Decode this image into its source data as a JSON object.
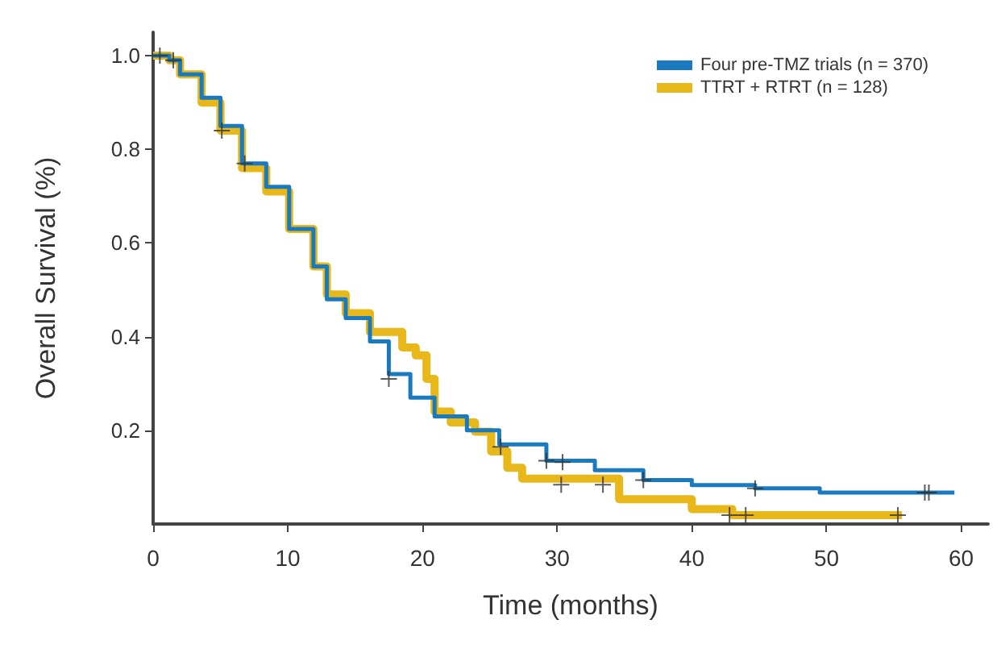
{
  "chart_data": {
    "type": "step",
    "xlabel": "Time (months)",
    "ylabel": "Overall Survival (%)",
    "xlim": [
      0,
      62
    ],
    "ylim": [
      0,
      1.05
    ],
    "xticks": [
      0,
      10,
      20,
      30,
      40,
      50,
      60
    ],
    "yticks": [
      0.2,
      0.4,
      0.6,
      0.8,
      {
        "value": 1,
        "label": "1.0"
      }
    ],
    "grid": false,
    "legend": "top right",
    "line_style": "solid",
    "series": [
      {
        "name": "Four pre-TMZ trials (n = 370)",
        "color": "#1a7abf",
        "x": [
          0,
          1.2,
          2.0,
          3.6,
          5.0,
          6.6,
          8.4,
          10.1,
          11.9,
          12.9,
          14.3,
          16.1,
          17.5,
          19.1,
          20.9,
          23.3,
          25.7,
          29.2,
          32.8,
          36.4,
          40,
          44.7,
          49.5,
          59.5
        ],
        "values": [
          1,
          0.99,
          0.96,
          0.91,
          0.85,
          0.77,
          0.72,
          0.63,
          0.55,
          0.48,
          0.44,
          0.39,
          0.32,
          0.27,
          0.23,
          0.2,
          0.17,
          0.135,
          0.115,
          0.094,
          0.083,
          0.076,
          0.067,
          0.067
        ]
      },
      {
        "name": "TTRT + RTRT (n = 128)",
        "color": "#e8b71a",
        "x": [
          0,
          1.2,
          2.0,
          3.6,
          5.0,
          6.6,
          8.4,
          10.1,
          11.9,
          12.9,
          14.3,
          16.1,
          18.5,
          19.5,
          20.3,
          20.9,
          22.1,
          23.9,
          25.1,
          26.3,
          27.4,
          34.6,
          40,
          43,
          55.6
        ],
        "values": [
          1,
          0.99,
          0.96,
          0.9,
          0.84,
          0.76,
          0.71,
          0.63,
          0.55,
          0.49,
          0.45,
          0.41,
          0.377,
          0.36,
          0.31,
          0.24,
          0.217,
          0.197,
          0.155,
          0.12,
          0.097,
          0.053,
          0.032,
          0.019,
          0.019
        ]
      },
      {
        "type": "scatter",
        "marker": "cross",
        "color": "#333333",
        "x": [
          0.5,
          1.5,
          5.1,
          6.8,
          17.5,
          25.8,
          29.2,
          30.4,
          36.4,
          44.7,
          57.3,
          57.6
        ],
        "values": [
          1,
          0.99,
          0.84,
          0.77,
          0.31,
          0.165,
          0.135,
          0.132,
          0.094,
          0.076,
          0.067,
          0.067
        ]
      },
      {
        "type": "scatter",
        "marker": "cross",
        "color": "#333333",
        "x": [
          30.3,
          33.4,
          42.8,
          44.0,
          55.3
        ],
        "values": [
          0.084,
          0.084,
          0.019,
          0.019,
          0.019
        ]
      }
    ]
  }
}
